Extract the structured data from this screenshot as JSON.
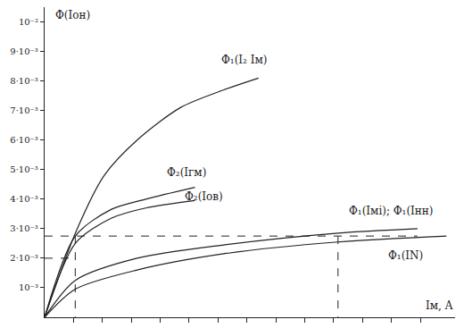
{
  "chart_data": {
    "type": "line",
    "y_label": "Φ(Iон)",
    "x_label": "Iм, A",
    "xlim": [
      0,
      14.2
    ],
    "xticks": [
      1,
      2,
      3,
      4,
      5,
      6,
      7,
      8,
      9,
      10,
      11,
      12,
      13
    ],
    "ylim": [
      0,
      0.0105
    ],
    "yticks": [
      {
        "value": 0.001,
        "label": "10⁻³"
      },
      {
        "value": 0.002,
        "label": "2·10⁻³"
      },
      {
        "value": 0.003,
        "label": "3·10⁻³"
      },
      {
        "value": 0.004,
        "label": "4·10⁻³"
      },
      {
        "value": 0.005,
        "label": "5·10⁻³"
      },
      {
        "value": 0.006,
        "label": "6·10⁻³"
      },
      {
        "value": 0.007,
        "label": "7·10⁻³"
      },
      {
        "value": 0.008,
        "label": "8·10⁻³"
      },
      {
        "value": 0.009,
        "label": "9·10⁻³"
      },
      {
        "value": 0.01,
        "label": "10⁻²"
      }
    ],
    "tick_labels": "y",
    "grid": false,
    "color": "#222222",
    "series": [
      {
        "name": "Φ₁(I₂ Iм)",
        "x": [
          0,
          1.06,
          2.06,
          3.2,
          4.7,
          6.2,
          7.4
        ],
        "y": [
          0,
          0.00284,
          0.0048,
          0.006,
          0.0071,
          0.0077,
          0.0081
        ],
        "label_position": [
          6.9,
          0.0087
        ]
      },
      {
        "name": "Φ₂(Iгм)",
        "x": [
          0,
          1.06,
          2.3,
          3.5,
          5.2
        ],
        "y": [
          0,
          0.00275,
          0.00365,
          0.004,
          0.0044
        ],
        "label_position": [
          4.9,
          0.0049
        ]
      },
      {
        "name": "Φ₂(Iов)",
        "x": [
          0,
          1.06,
          2.3,
          3.5,
          5.2
        ],
        "y": [
          0,
          0.0025,
          0.00335,
          0.0037,
          0.00395
        ],
        "label_position": [
          5.5,
          0.0041
        ]
      },
      {
        "name": "Φ₁(Iмі); Φ₁(Iнн)",
        "x": [
          0,
          1.06,
          3.2,
          6.2,
          10.15,
          12.9
        ],
        "y": [
          0,
          0.00125,
          0.002,
          0.00245,
          0.00285,
          0.003
        ],
        "label_position": [
          12.0,
          0.0036
        ]
      },
      {
        "name": "Φ₁(IN)",
        "x": [
          0,
          1.06,
          3.2,
          6.2,
          10.15,
          13.9
        ],
        "y": [
          0,
          0.00095,
          0.0016,
          0.00215,
          0.00255,
          0.00275
        ],
        "label_position": [
          12.5,
          0.0021
        ]
      }
    ],
    "guides": [
      {
        "x": [
          0,
          12.9
        ],
        "y": [
          0.00275,
          0.00275
        ],
        "line_style": "dashed"
      },
      {
        "x": [
          0,
          1.06
        ],
        "y": [
          0.002,
          0.002
        ],
        "line_style": "dashed"
      },
      {
        "x": [
          1.06,
          1.06
        ],
        "y": [
          0.00275,
          0
        ],
        "line_style": "dashed"
      },
      {
        "x": [
          10.15,
          10.15
        ],
        "y": [
          0.00275,
          0
        ],
        "line_style": "dashed"
      }
    ]
  }
}
